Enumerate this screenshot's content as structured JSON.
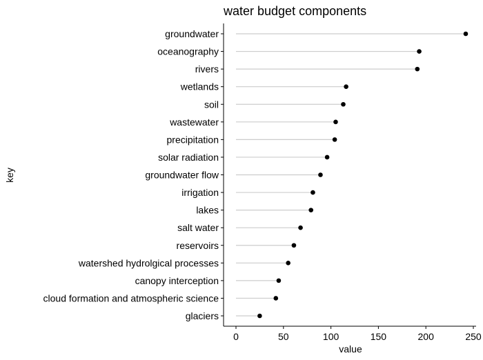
{
  "chart_data": {
    "type": "lollipop",
    "title": "water budget components",
    "xlabel": "value",
    "ylabel": "key",
    "xlim": [
      -5,
      250
    ],
    "xticks": [
      0,
      50,
      100,
      150,
      200,
      250
    ],
    "grid": false,
    "categories": [
      "groundwater",
      "oceanography",
      "rivers",
      "wetlands",
      "soil",
      "wastewater",
      "precipitation",
      "solar radiation",
      "groundwater flow",
      "irrigation",
      "lakes",
      "salt water",
      "reservoirs",
      "watershed hydrolgical processes",
      "canopy interception",
      "cloud formation and atmospheric science",
      "glaciers"
    ],
    "values": [
      242,
      193,
      191,
      116,
      113,
      105,
      104,
      96,
      89,
      81,
      79,
      68,
      61,
      55,
      45,
      42,
      25
    ],
    "colors": {
      "stem": "#cccccc",
      "point": "#000000",
      "axis": "#000000"
    }
  }
}
